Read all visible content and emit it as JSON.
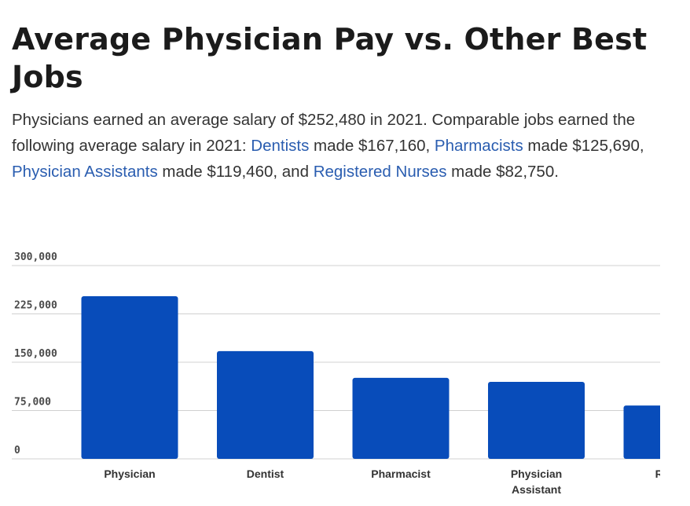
{
  "page": {
    "title": "Average Physician Pay vs. Other Best Jobs",
    "description": {
      "part1": "Physicians earned an average salary of $252,480 in 2021. Comparable jobs earned the following average salary in 2021: ",
      "link1": "Dentists",
      "part2": " made $167,160, ",
      "link2": "Pharmacists",
      "part3": " made $125,690, ",
      "link3": "Physician Assistants",
      "part4": " made $119,460, and ",
      "link4": "Registered Nurses",
      "part5": " made $82,750."
    }
  },
  "colors": {
    "bar": "#084cba",
    "grid": "#d0d0d0",
    "link": "#2a5db0"
  },
  "chart_data": {
    "type": "bar",
    "categories": [
      [
        "Physician"
      ],
      [
        "Dentist"
      ],
      [
        "Pharmacist"
      ],
      [
        "Physician",
        "Assistant"
      ],
      [
        "Regist"
      ]
    ],
    "values": [
      252480,
      167160,
      125690,
      119460,
      82750
    ],
    "yticks": [
      0,
      75000,
      150000,
      225000,
      300000
    ],
    "ytick_labels": [
      "0",
      "75,000",
      "150,000",
      "225,000",
      "300,000"
    ],
    "ylim": [
      0,
      300000
    ],
    "grid": true
  }
}
